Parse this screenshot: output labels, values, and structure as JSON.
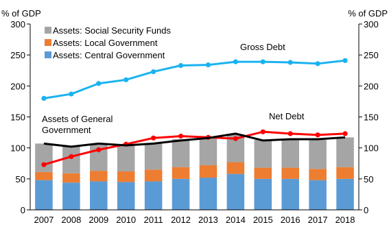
{
  "chart_data": {
    "type": "bar",
    "categories": [
      "2007",
      "2008",
      "2009",
      "2010",
      "2011",
      "2012",
      "2013",
      "2014",
      "2015",
      "2016",
      "2017",
      "2018"
    ],
    "y_unit_left": "% of GDP",
    "y_unit_right": "% of GDP",
    "ylim": [
      0,
      300
    ],
    "yticks": [
      0,
      50,
      100,
      150,
      200,
      250,
      300
    ],
    "grid": false,
    "legend": [
      "Assets: Social Security Funds",
      "Assets: Local Government",
      "Assets: Central Government"
    ],
    "stacked_bars": [
      {
        "name": "Assets: Central Government",
        "color": "#5b9bd5",
        "values": [
          48,
          44,
          46,
          45,
          46,
          50,
          52,
          58,
          50,
          50,
          48,
          50
        ]
      },
      {
        "name": "Assets: Local Government",
        "color": "#ed7d31",
        "values": [
          13,
          15,
          17,
          17,
          19,
          19,
          20,
          19,
          18,
          18,
          18,
          19
        ]
      },
      {
        "name": "Assets: Social Security Funds",
        "color": "#a5a5a5",
        "values": [
          46,
          43,
          44,
          44,
          43,
          45,
          45,
          45,
          45,
          45,
          47,
          48
        ]
      }
    ],
    "lines": [
      {
        "name": "Gross Debt",
        "color": "#1ab2f0",
        "marker": true,
        "values": [
          180,
          187,
          204,
          210,
          223,
          233,
          234,
          239,
          239,
          238,
          236,
          241
        ]
      },
      {
        "name": "Net Debt",
        "color": "#ff0000",
        "marker": true,
        "values": [
          73,
          86,
          97,
          106,
          116,
          119,
          117,
          115,
          126,
          123,
          121,
          123
        ]
      },
      {
        "name": "Assets of General Government",
        "color": "#000000",
        "marker": false,
        "values": [
          107,
          102,
          107,
          104,
          107,
          112,
          116,
          123,
          112,
          114,
          114,
          117
        ]
      }
    ],
    "annotations": {
      "gross_debt": "Gross Debt",
      "net_debt": "Net Debt",
      "assets_line_1": "Assets of General",
      "assets_line_2": "Government"
    }
  }
}
